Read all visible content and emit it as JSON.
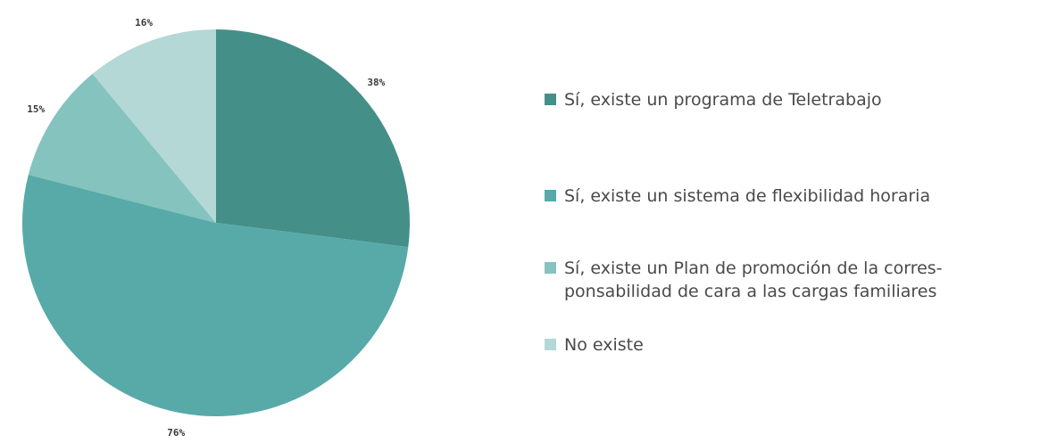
{
  "chart_data": {
    "type": "pie",
    "slices": [
      {
        "label": "Sí, existe un programa de Teletrabajo",
        "pct_label": "38%",
        "share": 0.27,
        "color": "#458f89"
      },
      {
        "label": "Sí, existe un sistema de flexibilidad horaria",
        "pct_label": "76%",
        "share": 0.52,
        "color": "#57aaa8"
      },
      {
        "label": "Sí, existe un Plan de promoción de la corres-\nponsabilidad de cara a las cargas familiares",
        "pct_label": "15%",
        "share": 0.1,
        "color": "#85c3bf"
      },
      {
        "label": "No existe",
        "pct_label": "16%",
        "share": 0.11,
        "color": "#b3d8d6"
      }
    ],
    "legend_position": "right"
  }
}
